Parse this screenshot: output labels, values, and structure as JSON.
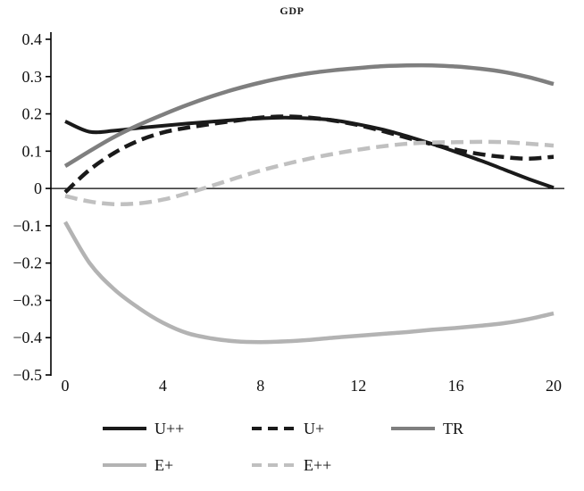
{
  "chart_data": {
    "type": "line",
    "title": "GDP",
    "xlabel": "",
    "ylabel": "",
    "xlim": [
      0,
      20
    ],
    "ylim": [
      -0.5,
      0.4
    ],
    "grid": false,
    "legend_position": "bottom",
    "x": [
      0,
      1,
      2,
      3,
      4,
      5,
      6,
      7,
      8,
      9,
      10,
      11,
      12,
      13,
      14,
      15,
      16,
      17,
      18,
      19,
      20
    ],
    "x_ticks": [
      0,
      4,
      8,
      12,
      16,
      20
    ],
    "y_ticks": [
      {
        "value": 0.4,
        "label": "0.4"
      },
      {
        "value": 0.3,
        "label": "0.3"
      },
      {
        "value": 0.2,
        "label": "0.2"
      },
      {
        "value": 0.1,
        "label": "0.1"
      },
      {
        "value": 0.0,
        "label": "0"
      },
      {
        "value": -0.1,
        "label": "−0.1"
      },
      {
        "value": -0.2,
        "label": "−0.2"
      },
      {
        "value": -0.3,
        "label": "−0.3"
      },
      {
        "value": -0.4,
        "label": "−0.4"
      },
      {
        "value": -0.5,
        "label": "−0.5"
      }
    ],
    "series": [
      {
        "name": "U++",
        "color": "#1a1a1a",
        "dash": "solid",
        "width": 4,
        "values": [
          0.18,
          0.152,
          0.155,
          0.162,
          0.168,
          0.174,
          0.179,
          0.184,
          0.188,
          0.19,
          0.188,
          0.183,
          0.172,
          0.158,
          0.14,
          0.12,
          0.098,
          0.075,
          0.05,
          0.025,
          0.002
        ]
      },
      {
        "name": "U+",
        "color": "#1a1a1a",
        "dash": "dashed",
        "width": 4.5,
        "values": [
          -0.01,
          0.05,
          0.095,
          0.128,
          0.15,
          0.163,
          0.173,
          0.182,
          0.19,
          0.193,
          0.19,
          0.182,
          0.17,
          0.154,
          0.136,
          0.119,
          0.104,
          0.092,
          0.084,
          0.08,
          0.085
        ]
      },
      {
        "name": "TR",
        "color": "#7f7f7f",
        "dash": "solid",
        "width": 4.5,
        "values": [
          0.06,
          0.1,
          0.138,
          0.17,
          0.198,
          0.224,
          0.247,
          0.267,
          0.284,
          0.298,
          0.309,
          0.317,
          0.323,
          0.328,
          0.33,
          0.33,
          0.327,
          0.321,
          0.312,
          0.298,
          0.28
        ]
      },
      {
        "name": "E+",
        "color": "#b3b3b3",
        "dash": "solid",
        "width": 4.5,
        "values": [
          -0.09,
          -0.2,
          -0.27,
          -0.32,
          -0.36,
          -0.388,
          -0.402,
          -0.41,
          -0.412,
          -0.41,
          -0.406,
          -0.4,
          -0.395,
          -0.39,
          -0.385,
          -0.379,
          -0.374,
          -0.368,
          -0.361,
          -0.35,
          -0.335
        ]
      },
      {
        "name": "E++",
        "color": "#c0c0c0",
        "dash": "dashed",
        "width": 4.5,
        "values": [
          -0.02,
          -0.035,
          -0.042,
          -0.04,
          -0.03,
          -0.013,
          0.007,
          0.028,
          0.048,
          0.065,
          0.08,
          0.093,
          0.104,
          0.113,
          0.12,
          0.123,
          0.124,
          0.125,
          0.124,
          0.12,
          0.115
        ]
      }
    ],
    "legend_rows": [
      [
        "U++",
        "U+",
        "TR"
      ],
      [
        "E+",
        "E++"
      ]
    ]
  }
}
